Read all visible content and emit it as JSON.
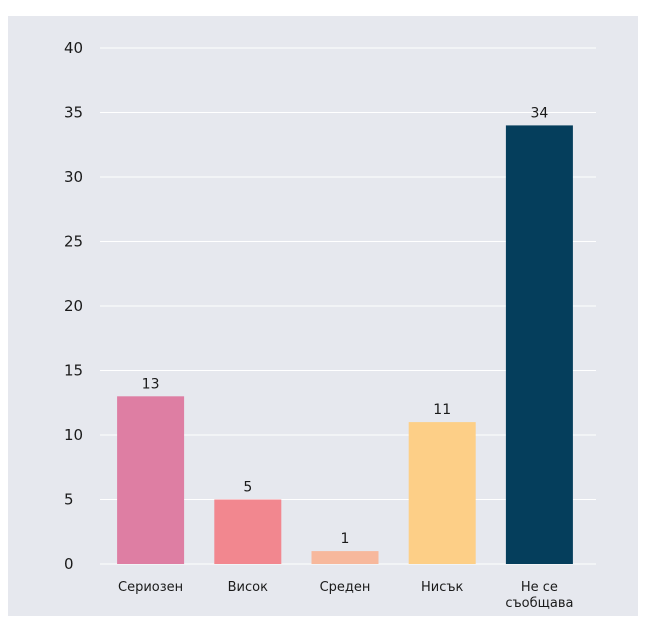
{
  "chart_data": {
    "type": "bar",
    "categories": [
      "Сериозен",
      "Висок",
      "Среден",
      "Нисък",
      "Не се съобщава"
    ],
    "category_lines": [
      [
        "Сериозен"
      ],
      [
        "Висок"
      ],
      [
        "Среден"
      ],
      [
        "Нисък"
      ],
      [
        "Не се",
        "съобщава"
      ]
    ],
    "values": [
      13,
      5,
      1,
      11,
      34
    ],
    "data_labels": [
      "13",
      "5",
      "1",
      "11",
      "34"
    ],
    "colors": [
      "#de7ea3",
      "#f2878f",
      "#f7b89c",
      "#fdcf87",
      "#053e5c"
    ],
    "ylim": [
      0,
      40
    ],
    "yticks": [
      0,
      5,
      10,
      15,
      20,
      25,
      30,
      35,
      40
    ],
    "ytick_labels": [
      "0",
      "5",
      "10",
      "15",
      "20",
      "25",
      "30",
      "35",
      "40"
    ],
    "grid": true,
    "title": "",
    "xlabel": "",
    "ylabel": ""
  },
  "colors": {
    "panel_background": "#e6e8ee",
    "grid": "#ffffff",
    "text": "#1a1a1a"
  }
}
